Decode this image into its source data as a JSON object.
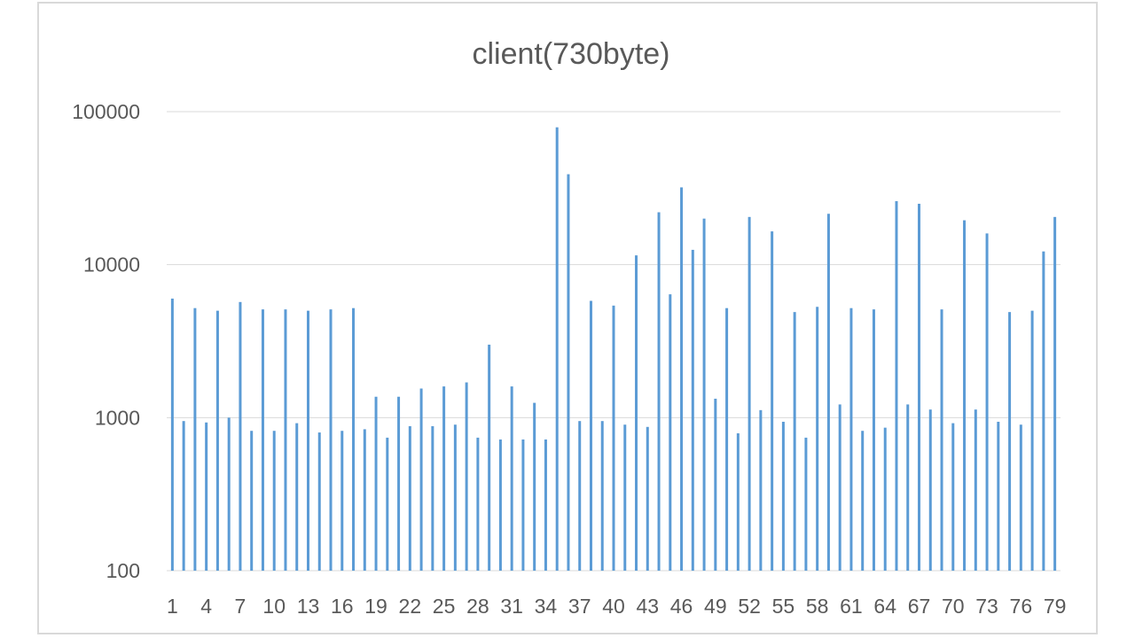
{
  "chart_data": {
    "type": "bar",
    "title": "client(730byte)",
    "xlabel": "",
    "ylabel": "",
    "y_scale": "log",
    "ylim": [
      100,
      100000
    ],
    "y_ticks": [
      100,
      1000,
      10000,
      100000
    ],
    "y_tick_labels": [
      "100",
      "1000",
      "10000",
      "100000"
    ],
    "grid": true,
    "legend": "none",
    "color": "#5b9bd5",
    "categories": [
      1,
      2,
      3,
      4,
      5,
      6,
      7,
      8,
      9,
      10,
      11,
      12,
      13,
      14,
      15,
      16,
      17,
      18,
      19,
      20,
      21,
      22,
      23,
      24,
      25,
      26,
      27,
      28,
      29,
      30,
      31,
      32,
      33,
      34,
      35,
      36,
      37,
      38,
      39,
      40,
      41,
      42,
      43,
      44,
      45,
      46,
      47,
      48,
      49,
      50,
      51,
      52,
      53,
      54,
      55,
      56,
      57,
      58,
      59,
      60,
      61,
      62,
      63,
      64,
      65,
      66,
      67,
      68,
      69,
      70,
      71,
      72,
      73,
      74,
      75,
      76,
      77,
      78,
      79
    ],
    "x_tick_labels": [
      "1",
      "4",
      "7",
      "10",
      "13",
      "16",
      "19",
      "22",
      "25",
      "28",
      "31",
      "34",
      "37",
      "40",
      "43",
      "46",
      "49",
      "52",
      "55",
      "58",
      "61",
      "64",
      "67",
      "70",
      "73",
      "76",
      "79"
    ],
    "values": [
      6000,
      950,
      5200,
      930,
      5000,
      1000,
      5700,
      820,
      5100,
      820,
      5100,
      920,
      5000,
      800,
      5100,
      820,
      5200,
      840,
      1370,
      740,
      1370,
      880,
      1550,
      880,
      1600,
      900,
      1700,
      740,
      3000,
      720,
      1600,
      720,
      1250,
      720,
      79000,
      39000,
      950,
      5800,
      950,
      5400,
      900,
      11500,
      870,
      22000,
      6400,
      32000,
      12500,
      20000,
      1330,
      5200,
      790,
      20500,
      1120,
      16500,
      940,
      4900,
      740,
      5300,
      21500,
      1220,
      5200,
      820,
      5100,
      860,
      26000,
      1220,
      25000,
      1130,
      5100,
      920,
      19500,
      1130,
      16000,
      940,
      4900,
      900,
      5000,
      12200,
      20500
    ]
  }
}
